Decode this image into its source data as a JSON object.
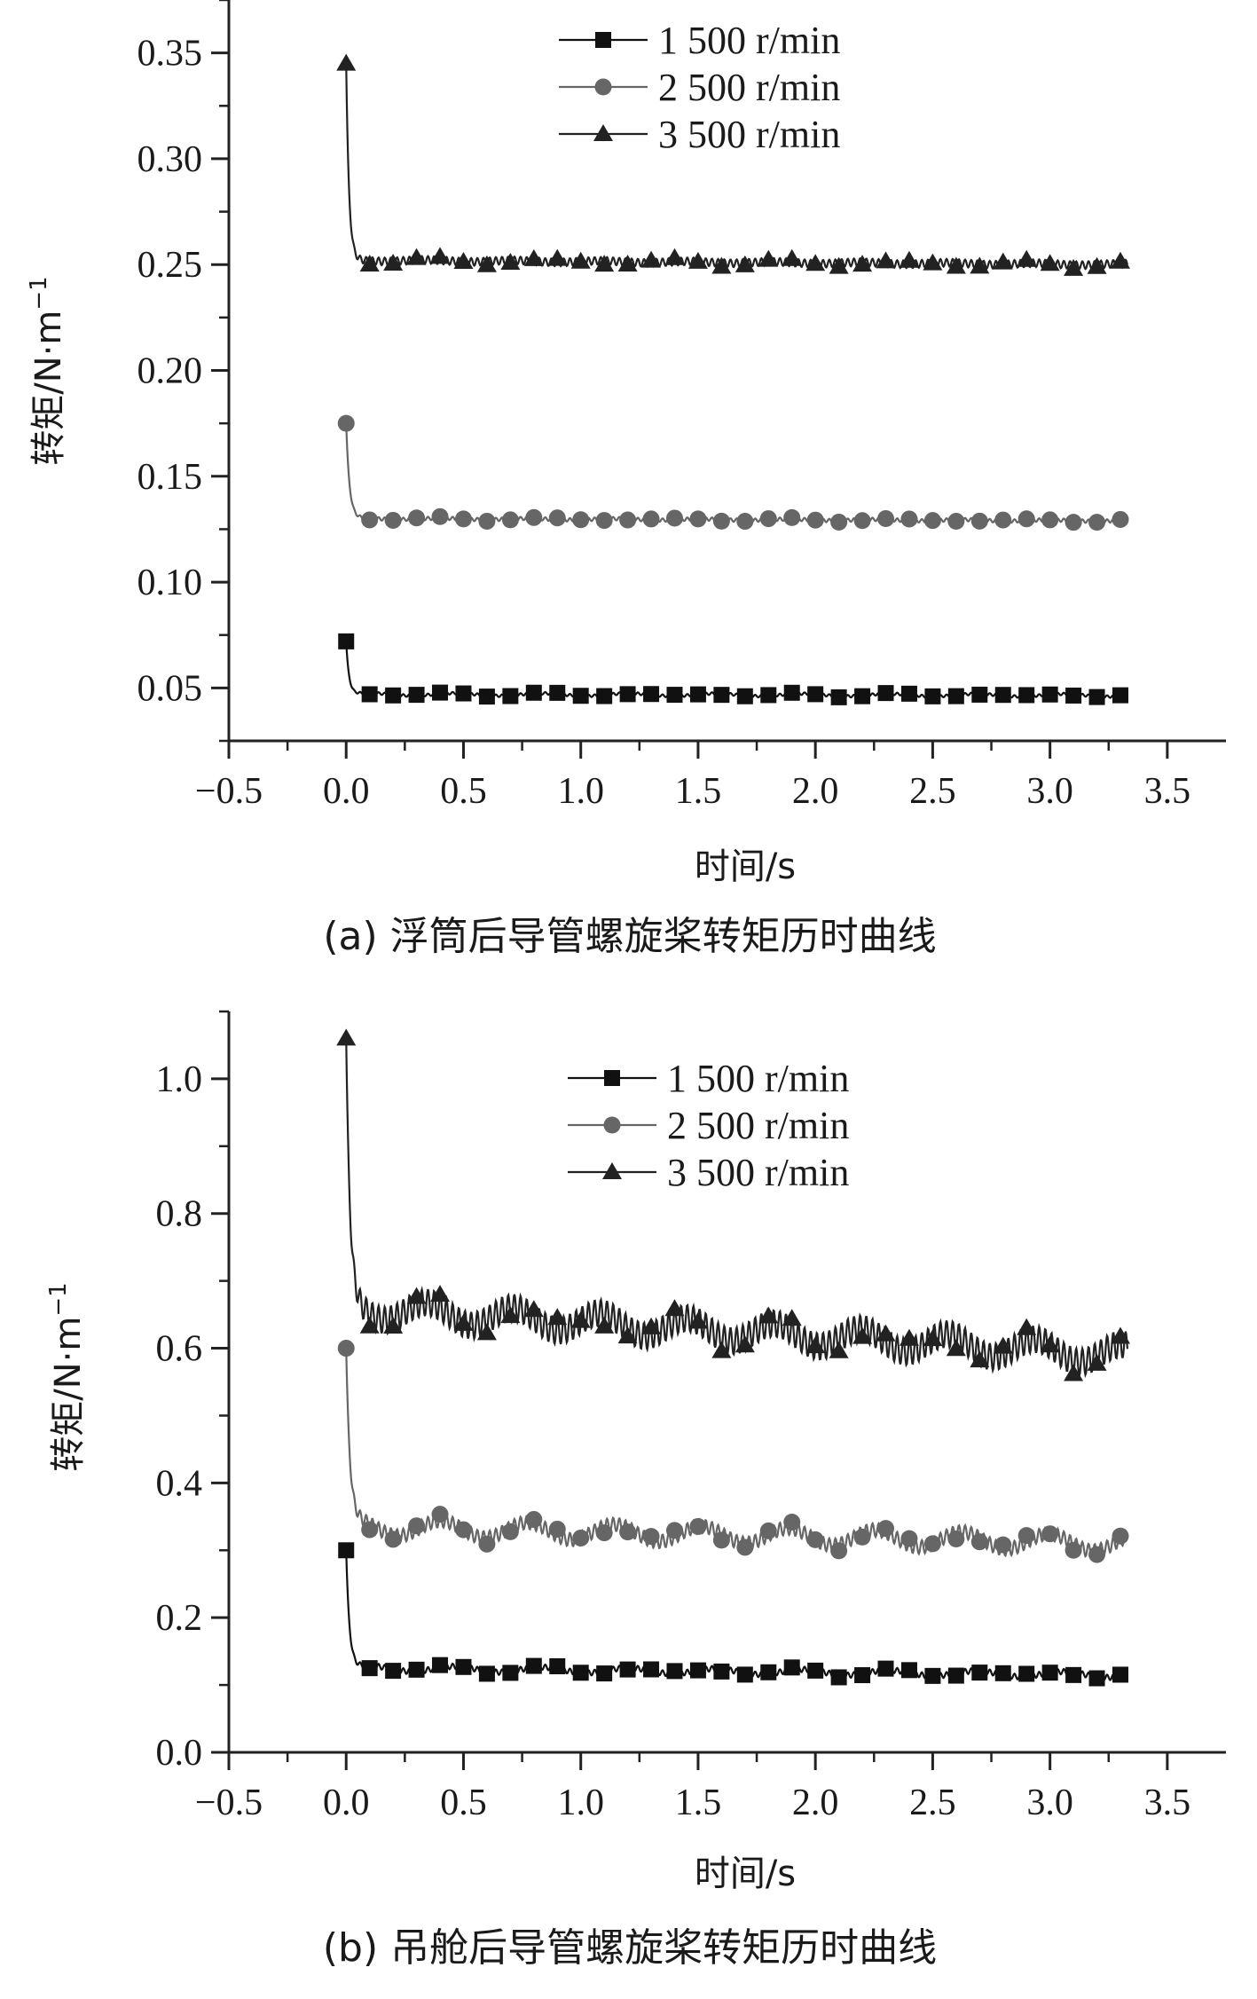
{
  "chart_data": [
    {
      "type": "line",
      "caption": "(a) 浮筒后导管螺旋桨转矩历时曲线",
      "xlabel": "时间/s",
      "ylabel": "转矩/N·m",
      "ylabel_sup": "−1",
      "xlim": [
        -0.5,
        3.75
      ],
      "ylim": [
        0.025,
        0.375
      ],
      "xticks": [
        -0.5,
        0.0,
        0.5,
        1.0,
        1.5,
        2.0,
        2.5,
        3.0,
        3.5
      ],
      "xtick_labels": [
        "−0.5",
        "0.0",
        "0.5",
        "1.0",
        "1.5",
        "2.0",
        "2.5",
        "3.0",
        "3.5"
      ],
      "yticks": [
        0.05,
        0.1,
        0.15,
        0.2,
        0.25,
        0.3,
        0.35
      ],
      "ytick_labels": [
        "0.05",
        "0.10",
        "0.15",
        "0.20",
        "0.25",
        "0.30",
        "0.35"
      ],
      "legend_position": "top-center",
      "series": [
        {
          "name": "1 500 r/min",
          "marker": "square",
          "color": "#111111",
          "start": 0.072,
          "steady": 0.047,
          "end": 0.0465,
          "decay": 0.012,
          "osc": 0.0006,
          "jitter": 0.0006
        },
        {
          "name": "2 500 r/min",
          "marker": "circle",
          "color": "#666666",
          "start": 0.175,
          "steady": 0.13,
          "end": 0.129,
          "decay": 0.014,
          "osc": 0.0008,
          "jitter": 0.0003
        },
        {
          "name": "3 500 r/min",
          "marker": "triangle",
          "color": "#222222",
          "start": 0.345,
          "steady": 0.252,
          "end": 0.25,
          "decay": 0.012,
          "osc": 0.0018,
          "jitter": 0.0004
        }
      ]
    },
    {
      "type": "line",
      "caption": "(b) 吊舱后导管螺旋桨转矩历时曲线",
      "xlabel": "时间/s",
      "ylabel": "转矩/N·m",
      "ylabel_sup": "−1",
      "xlim": [
        -0.5,
        3.75
      ],
      "ylim": [
        0.0,
        1.1
      ],
      "xticks": [
        -0.5,
        0.0,
        0.5,
        1.0,
        1.5,
        2.0,
        2.5,
        3.0,
        3.5
      ],
      "xtick_labels": [
        "−0.5",
        "0.0",
        "0.5",
        "1.0",
        "1.5",
        "2.0",
        "2.5",
        "3.0",
        "3.5"
      ],
      "yticks": [
        0.0,
        0.2,
        0.4,
        0.6,
        0.8,
        1.0
      ],
      "ytick_labels": [
        "0.0",
        "0.2",
        "0.4",
        "0.6",
        "0.8",
        "1.0"
      ],
      "legend_position": "top-center",
      "series": [
        {
          "name": "1 500 r/min",
          "marker": "square",
          "color": "#111111",
          "start": 0.3,
          "steady": 0.125,
          "end": 0.115,
          "decay": 0.014,
          "osc": 0.004,
          "jitter": 0.004
        },
        {
          "name": "2 500 r/min",
          "marker": "circle",
          "color": "#666666",
          "start": 0.6,
          "steady": 0.335,
          "end": 0.31,
          "decay": 0.016,
          "osc": 0.01,
          "jitter": 0.012
        },
        {
          "name": "3 500 r/min",
          "marker": "triangle",
          "color": "#222222",
          "start": 1.06,
          "steady": 0.66,
          "end": 0.59,
          "decay": 0.016,
          "osc": 0.02,
          "jitter": 0.015
        }
      ]
    }
  ]
}
